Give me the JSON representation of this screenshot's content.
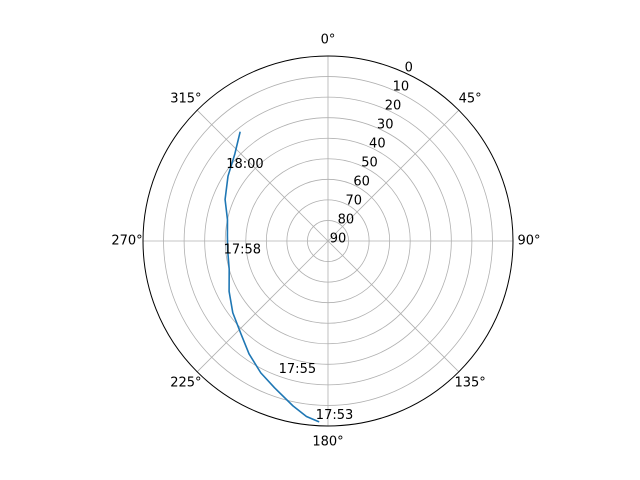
{
  "chart_data": {
    "type": "line",
    "projection": "polar",
    "theta_direction": "clockwise",
    "theta_zero": "top",
    "r_axis": "inverted",
    "rlim": [
      90,
      0
    ],
    "theta_ticks": [
      "0°",
      "45°",
      "90°",
      "135°",
      "180°",
      "225°",
      "270°",
      "315°"
    ],
    "theta_tick_values": [
      0,
      45,
      90,
      135,
      180,
      225,
      270,
      315
    ],
    "r_ticks": [
      0,
      10,
      20,
      30,
      40,
      50,
      60,
      70,
      80,
      90
    ],
    "grid": true,
    "series": [
      {
        "color": "#1f77b4",
        "points": [
          {
            "theta": 183,
            "r": 2
          },
          {
            "theta": 187,
            "r": 4
          },
          {
            "theta": 192,
            "r": 8
          },
          {
            "theta": 200,
            "r": 14
          },
          {
            "theta": 207,
            "r": 18
          },
          {
            "theta": 215,
            "r": 23
          },
          {
            "theta": 223,
            "r": 28
          },
          {
            "theta": 233,
            "r": 32
          },
          {
            "theta": 243,
            "r": 36
          },
          {
            "theta": 254,
            "r": 40
          },
          {
            "theta": 265,
            "r": 41
          },
          {
            "theta": 273,
            "r": 41
          },
          {
            "theta": 282,
            "r": 40
          },
          {
            "theta": 292,
            "r": 36
          },
          {
            "theta": 303,
            "r": 32
          },
          {
            "theta": 313,
            "r": 28
          },
          {
            "theta": 321,
            "r": 22
          }
        ]
      }
    ],
    "annotations": [
      {
        "text": "18:00",
        "theta": 307,
        "r": 28
      },
      {
        "text": "17:58",
        "theta": 265,
        "r": 39
      },
      {
        "text": "17:55",
        "theta": 201,
        "r": 23
      },
      {
        "text": "17:53",
        "theta": 184,
        "r": 5
      }
    ]
  }
}
